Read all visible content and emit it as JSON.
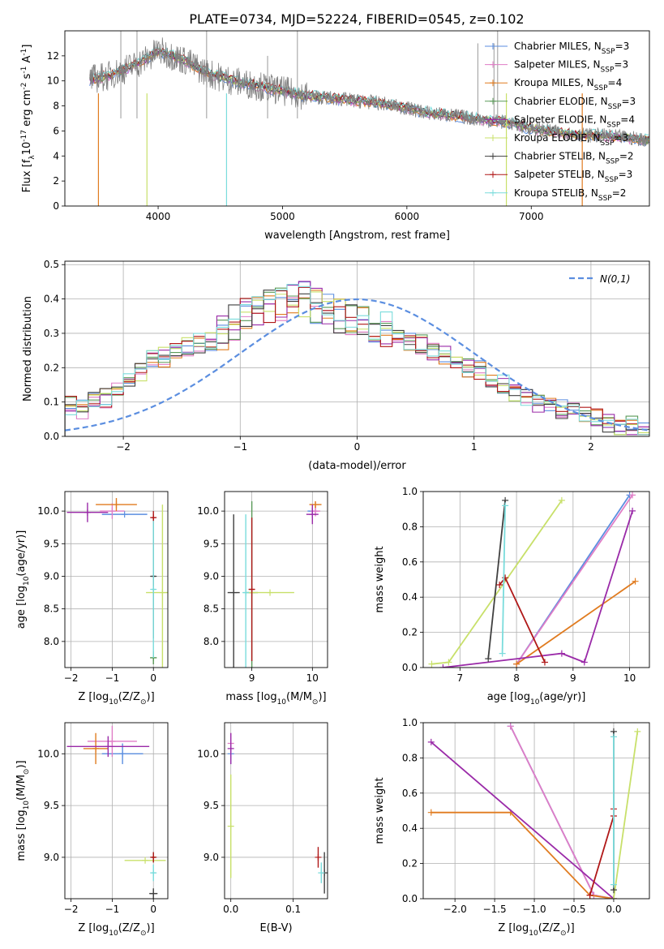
{
  "title": "PLATE=0734, MJD=52224, FIBERID=0545, z=0.102",
  "series_styles": [
    {
      "name": "Chabrier MILES, N_SSP=3",
      "label": "Chabrier MILES, N",
      "sub": "SSP",
      "suffix": "=3",
      "color": "#5b8ee0"
    },
    {
      "name": "Salpeter MILES, N_SSP=3",
      "label": "Salpeter MILES, N",
      "sub": "SSP",
      "suffix": "=3",
      "color": "#e07dc6"
    },
    {
      "name": "Kroupa MILES, N_SSP=4",
      "label": "Kroupa MILES, N",
      "sub": "SSP",
      "suffix": "=4",
      "color": "#e07b1f"
    },
    {
      "name": "Chabrier ELODIE, N_SSP=3",
      "label": "Chabrier ELODIE, N",
      "sub": "SSP",
      "suffix": "=3",
      "color": "#5a9a58"
    },
    {
      "name": "Salpeter ELODIE, N_SSP=4",
      "label": "Salpeter ELODIE, N",
      "sub": "SSP",
      "suffix": "=4",
      "color": "#9a2aa8"
    },
    {
      "name": "Kroupa ELODIE, N_SSP=3",
      "label": "Kroupa ELODIE, N",
      "sub": "SSP",
      "suffix": "=3",
      "color": "#c8e06a"
    },
    {
      "name": "Chabrier STELIB, N_SSP=2",
      "label": "Chabrier STELIB, N",
      "sub": "SSP",
      "suffix": "=2",
      "color": "#404040"
    },
    {
      "name": "Salpeter STELIB, N_SSP=3",
      "label": "Salpeter STELIB, N",
      "sub": "SSP",
      "suffix": "=3",
      "color": "#b01818"
    },
    {
      "name": "Kroupa STELIB, N_SSP=2",
      "label": "Kroupa STELIB, N",
      "sub": "SSP",
      "suffix": "=2",
      "color": "#7adcdc"
    }
  ],
  "chart_data": [
    {
      "id": "spectrum",
      "type": "line",
      "xlabel": "wavelength [Angstrom, rest frame]",
      "ylabel_main": "Flux [f",
      "ylabel_rest": "10",
      "ylabel_exp": "-17",
      "ylabel_unit": " erg cm",
      "ylabel_unit_exp": "-2",
      "ylabel_unit2": " s",
      "ylabel_unit2_exp": "-1",
      "ylabel_tail": " A",
      "ylabel_tail_exp": "-1",
      "ylabel_close": "]",
      "xlim": [
        3250,
        7950
      ],
      "ylim": [
        0,
        14
      ],
      "xticks": [
        4000,
        5000,
        6000,
        7000
      ],
      "yticks": [
        0,
        2,
        4,
        6,
        8,
        10,
        12
      ],
      "data_color": "#808080",
      "continuum_x": [
        3450,
        3600,
        3800,
        3950,
        4000,
        4200,
        4400,
        4600,
        4800,
        5000,
        5200,
        5400,
        5600,
        5800,
        6000,
        6200,
        6400,
        6600,
        6800,
        7000,
        7200,
        7400,
        7600,
        7950
      ],
      "continuum_y": [
        10.1,
        10.4,
        11.2,
        12.0,
        12.4,
        11.7,
        10.6,
        10.0,
        9.6,
        9.2,
        8.8,
        8.6,
        8.4,
        8.2,
        7.8,
        7.4,
        7.2,
        6.9,
        6.7,
        6.2,
        5.9,
        5.7,
        5.6,
        5.3
      ]
    },
    {
      "id": "residuals",
      "type": "line",
      "xlabel": "(data-model)/error",
      "ylabel": "Normed distribution",
      "xlim": [
        -2.5,
        2.5
      ],
      "ylim": [
        0,
        0.51
      ],
      "xticks": [
        -2,
        -1,
        0,
        1,
        2
      ],
      "yticks": [
        0.0,
        0.1,
        0.2,
        0.3,
        0.4,
        0.5
      ],
      "normal_label": "N(0,1)",
      "normal_color": "#5b8ee0",
      "hist_envelope": [
        0.09,
        0.08,
        0.1,
        0.11,
        0.13,
        0.16,
        0.19,
        0.22,
        0.23,
        0.25,
        0.26,
        0.27,
        0.28,
        0.3,
        0.33,
        0.35,
        0.36,
        0.38,
        0.39,
        0.4,
        0.4,
        0.38,
        0.36,
        0.35,
        0.34,
        0.33,
        0.32,
        0.31,
        0.3,
        0.28,
        0.27,
        0.25,
        0.24,
        0.22,
        0.2,
        0.19,
        0.16,
        0.15,
        0.13,
        0.12,
        0.1,
        0.09,
        0.08,
        0.07,
        0.06,
        0.05,
        0.04,
        0.03,
        0.03,
        0.02
      ]
    },
    {
      "id": "z-age",
      "type": "scatter",
      "xlabel": "Z [log",
      "xlabel_sub": "10",
      "xlabel_rest": "(Z/Z",
      "xlabel_end": ")]",
      "ylabel": "age  [log",
      "ylabel_sub": "10",
      "ylabel_rest": "(age/yr)]",
      "xlim": [
        -2.15,
        0.35
      ],
      "ylim": [
        7.6,
        10.3
      ],
      "xticks": [
        -2,
        -1,
        0
      ],
      "yticks": [
        8.0,
        8.5,
        9.0,
        9.5,
        10.0
      ],
      "points": [
        {
          "s": 0,
          "x": -0.7,
          "y": 9.95,
          "xerr": 0.55,
          "yerr": 0.0
        },
        {
          "s": 1,
          "x": -1.0,
          "y": 10.0,
          "xerr": 0.3,
          "yerr": 0.12
        },
        {
          "s": 2,
          "x": -0.9,
          "y": 10.1,
          "xerr": 0.5,
          "yerr": 0.1
        },
        {
          "s": 3,
          "x": 0.0,
          "y": 7.75,
          "xerr": 0.08,
          "yerr": 0.1
        },
        {
          "s": 4,
          "x": -1.6,
          "y": 9.98,
          "xerr": 0.5,
          "yerr": 0.15
        },
        {
          "s": 5,
          "x": 0.22,
          "y": 8.75,
          "xerr": 0.4,
          "yerr": 1.35
        },
        {
          "s": 6,
          "x": 0.0,
          "y": 9.0,
          "xerr": 0.05,
          "yerr": 0.95
        },
        {
          "s": 7,
          "x": 0.0,
          "y": 9.9,
          "xerr": 0.05,
          "yerr": 0.1
        },
        {
          "s": 8,
          "x": 0.0,
          "y": 8.8,
          "xerr": 0.05,
          "yerr": 1.05
        }
      ]
    },
    {
      "id": "mass-age",
      "type": "scatter",
      "xlabel": "mass [log",
      "xlabel_sub": "10",
      "xlabel_rest": "(M/M",
      "xlabel_end": ")]",
      "xlim": [
        8.55,
        10.25
      ],
      "ylim": [
        7.6,
        10.3
      ],
      "xticks": [
        9,
        10
      ],
      "yticks": [
        8.0,
        8.5,
        9.0,
        9.5,
        10.0
      ],
      "points": [
        {
          "s": 0,
          "x": 10.0,
          "y": 10.0,
          "xerr": 0.08,
          "yerr": 0.05
        },
        {
          "s": 1,
          "x": 10.05,
          "y": 10.0,
          "xerr": 0.08,
          "yerr": 0.08
        },
        {
          "s": 2,
          "x": 10.05,
          "y": 10.1,
          "xerr": 0.1,
          "yerr": 0.05
        },
        {
          "s": 3,
          "x": 9.0,
          "y": 8.75,
          "xerr": 0.1,
          "yerr": 1.4
        },
        {
          "s": 4,
          "x": 10.0,
          "y": 9.95,
          "xerr": 0.1,
          "yerr": 0.15
        },
        {
          "s": 5,
          "x": 9.3,
          "y": 8.75,
          "xerr": 0.4,
          "yerr": 0.0
        },
        {
          "s": 6,
          "x": 8.7,
          "y": 8.75,
          "xerr": 0.1,
          "yerr": 1.2
        },
        {
          "s": 7,
          "x": 9.0,
          "y": 8.8,
          "xerr": 0.05,
          "yerr": 1.1
        },
        {
          "s": 8,
          "x": 8.9,
          "y": 8.75,
          "xerr": 0.05,
          "yerr": 1.2
        }
      ]
    },
    {
      "id": "age-massweight",
      "type": "line",
      "xlabel": "age  [log",
      "xlabel_sub": "10",
      "xlabel_rest": "(age/yr)]",
      "ylabel": "mass weight",
      "xlim": [
        6.35,
        10.35
      ],
      "ylim": [
        0,
        1.0
      ],
      "xticks": [
        7,
        8,
        9,
        10
      ],
      "yticks": [
        0.0,
        0.2,
        0.4,
        0.6,
        0.8,
        1.0
      ],
      "series": [
        {
          "s": 0,
          "x": [
            8.0,
            10.0
          ],
          "y": [
            0.02,
            0.98
          ]
        },
        {
          "s": 1,
          "x": [
            8.0,
            10.05
          ],
          "y": [
            0.02,
            0.98
          ]
        },
        {
          "s": 2,
          "x": [
            8.0,
            10.1
          ],
          "y": [
            0.02,
            0.49
          ]
        },
        {
          "s": 4,
          "x": [
            6.7,
            8.8,
            9.2,
            10.05
          ],
          "y": [
            0.0,
            0.08,
            0.03,
            0.89
          ]
        },
        {
          "s": 5,
          "x": [
            6.5,
            6.8,
            8.8
          ],
          "y": [
            0.02,
            0.03,
            0.95
          ]
        },
        {
          "s": 6,
          "x": [
            7.5,
            7.8
          ],
          "y": [
            0.05,
            0.95
          ]
        },
        {
          "s": 7,
          "x": [
            7.7,
            7.8,
            8.5
          ],
          "y": [
            0.47,
            0.51,
            0.03
          ]
        },
        {
          "s": 8,
          "x": [
            7.75,
            7.8
          ],
          "y": [
            0.08,
            0.92
          ]
        }
      ]
    },
    {
      "id": "z-mass",
      "type": "scatter",
      "xlabel": "Z [log",
      "xlabel_sub": "10",
      "xlabel_rest": "(Z/Z",
      "xlabel_end": ")]",
      "ylabel": "mass [log",
      "ylabel_sub": "10",
      "ylabel_rest": "(M/M",
      "ylabel_end": ")]",
      "xlim": [
        -2.15,
        0.35
      ],
      "ylim": [
        8.6,
        10.3
      ],
      "xticks": [
        -2,
        -1,
        0
      ],
      "yticks": [
        9.0,
        9.5,
        10.0
      ],
      "points": [
        {
          "s": 0,
          "x": -0.75,
          "y": 10.0,
          "xerr": 0.5,
          "yerr": 0.1
        },
        {
          "s": 1,
          "x": -1.0,
          "y": 10.12,
          "xerr": 0.6,
          "yerr": 0.15
        },
        {
          "s": 2,
          "x": -1.4,
          "y": 10.05,
          "xerr": 0.3,
          "yerr": 0.15
        },
        {
          "s": 3,
          "x": 0.0,
          "y": 9.0,
          "xerr": 0.05,
          "yerr": 0.05
        },
        {
          "s": 4,
          "x": -1.1,
          "y": 10.07,
          "xerr": 1.0,
          "yerr": 0.1
        },
        {
          "s": 5,
          "x": -0.2,
          "y": 8.97,
          "xerr": 0.5,
          "yerr": 0.0
        },
        {
          "s": 6,
          "x": 0.0,
          "y": 8.65,
          "xerr": 0.1,
          "yerr": 0.05
        },
        {
          "s": 7,
          "x": 0.0,
          "y": 9.0,
          "xerr": 0.05,
          "yerr": 0.05
        },
        {
          "s": 8,
          "x": 0.0,
          "y": 8.85,
          "xerr": 0.05,
          "yerr": 0.08
        }
      ]
    },
    {
      "id": "ebv-mass",
      "type": "scatter",
      "xlabel": "E(B-V)",
      "xlim": [
        -0.01,
        0.155
      ],
      "ylim": [
        8.6,
        10.3
      ],
      "xticks": [
        0.0,
        0.1
      ],
      "yticks": [
        9.0,
        9.5,
        10.0
      ],
      "points": [
        {
          "s": 0,
          "x": 0.0,
          "y": 10.0,
          "xerr": 0,
          "yerr": 0.1
        },
        {
          "s": 1,
          "x": 0.0,
          "y": 10.1,
          "xerr": 0,
          "yerr": 0.1
        },
        {
          "s": 4,
          "x": 0.0,
          "y": 10.05,
          "xerr": 0,
          "yerr": 0.15
        },
        {
          "s": 5,
          "x": 0.0,
          "y": 9.3,
          "xerr": 0,
          "yerr": 0.5
        },
        {
          "s": 6,
          "x": 0.15,
          "y": 8.85,
          "xerr": 0,
          "yerr": 0.2
        },
        {
          "s": 7,
          "x": 0.14,
          "y": 9.0,
          "xerr": 0,
          "yerr": 0.1
        },
        {
          "s": 8,
          "x": 0.145,
          "y": 8.85,
          "xerr": 0,
          "yerr": 0.1
        }
      ]
    },
    {
      "id": "z-massweight",
      "type": "line",
      "xlabel": "Z [log",
      "xlabel_sub": "10",
      "xlabel_rest": "(Z/Z",
      "xlabel_end": ")]",
      "ylabel": "mass weight",
      "xlim": [
        -2.4,
        0.45
      ],
      "ylim": [
        0,
        1.0
      ],
      "xticks": [
        -2.0,
        -1.5,
        -1.0,
        -0.5,
        0.0
      ],
      "xticklabels": [
        "−2.0",
        "−1.5",
        "−1.0",
        "−0.5",
        "0.0"
      ],
      "yticks": [
        0.0,
        0.2,
        0.4,
        0.6,
        0.8,
        1.0
      ],
      "series": [
        {
          "s": 0,
          "x": [
            -1.3,
            -0.25,
            0.0
          ],
          "y": [
            0.98,
            0.02,
            0.0
          ]
        },
        {
          "s": 1,
          "x": [
            -1.3,
            -0.25,
            0.0
          ],
          "y": [
            0.98,
            0.02,
            0.0
          ]
        },
        {
          "s": 2,
          "x": [
            -2.3,
            -1.3,
            -0.3,
            0.0
          ],
          "y": [
            0.49,
            0.49,
            0.02,
            0.0
          ]
        },
        {
          "s": 4,
          "x": [
            -2.3,
            0.0
          ],
          "y": [
            0.89,
            0.0
          ]
        },
        {
          "s": 5,
          "x": [
            0.0,
            0.3
          ],
          "y": [
            0.0,
            0.95
          ]
        },
        {
          "s": 6,
          "x": [
            0.0,
            0.0
          ],
          "y": [
            0.05,
            0.95
          ]
        },
        {
          "s": 7,
          "x": [
            -0.3,
            0.0,
            0.0
          ],
          "y": [
            0.02,
            0.47,
            0.51
          ]
        },
        {
          "s": 8,
          "x": [
            0.0,
            0.0
          ],
          "y": [
            0.08,
            0.92
          ]
        }
      ]
    }
  ]
}
